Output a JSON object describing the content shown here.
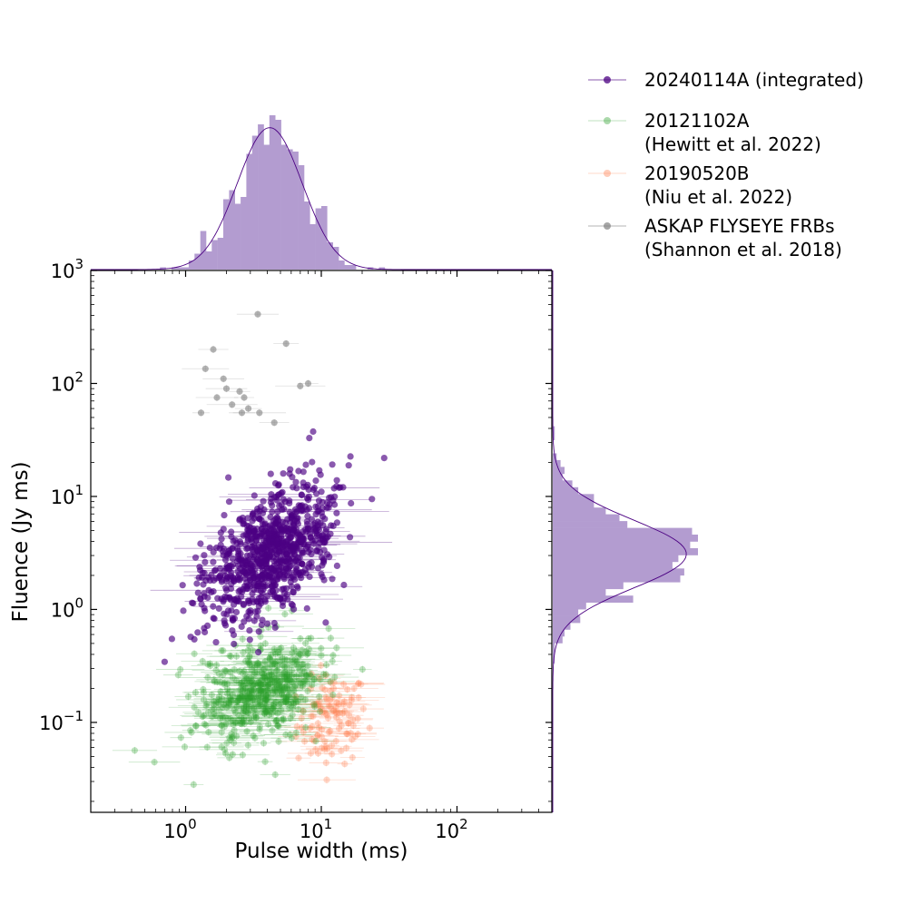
{
  "chart_data": {
    "type": "scatter",
    "xlabel": "Pulse width (ms)",
    "ylabel": "Fluence (Jy ms)",
    "xscale": "log",
    "yscale": "log",
    "xlim": [
      0.2,
      500
    ],
    "ylim": [
      0.016,
      1000
    ],
    "x_ticks": [
      {
        "base": "10",
        "exp": "0",
        "value": 1
      },
      {
        "base": "10",
        "exp": "1",
        "value": 10
      },
      {
        "base": "10",
        "exp": "2",
        "value": 100
      }
    ],
    "y_ticks": [
      {
        "base": "10",
        "exp": "−1",
        "value": 0.1
      },
      {
        "base": "10",
        "exp": "0",
        "value": 1
      },
      {
        "base": "10",
        "exp": "1",
        "value": 10
      },
      {
        "base": "10",
        "exp": "2",
        "value": 100
      },
      {
        "base": "10",
        "exp": "3",
        "value": 1000
      }
    ],
    "legend_placement": "outside top-right",
    "series": [
      {
        "name": "20240114A (integrated)",
        "color": "#4b0082",
        "alpha": 0.65,
        "n_points": 900,
        "x_log_mean": 0.62,
        "x_log_std": 0.24,
        "y_log_mean": 0.49,
        "y_log_std": 0.3,
        "correlation": 0.5
      },
      {
        "name": "20121102A\n (Hewitt et al. 2022)",
        "legend_lines": [
          "20121102A",
          " (Hewitt et al. 2022)"
        ],
        "color": "#2ca02c",
        "alpha": 0.3,
        "n_points": 520,
        "x_log_mean": 0.55,
        "x_log_std": 0.23,
        "y_log_mean": -0.72,
        "y_log_std": 0.24,
        "correlation": 0.35
      },
      {
        "name": "20190520B\n (Niu et al. 2022)",
        "legend_lines": [
          "20190520B",
          " (Niu et al. 2022)"
        ],
        "color": "#ff7f50",
        "alpha": 0.3,
        "n_points": 110,
        "x_log_mean": 1.08,
        "x_log_std": 0.13,
        "y_log_mean": -0.98,
        "y_log_std": 0.2,
        "correlation": 0.1
      },
      {
        "name": "ASKAP FLYSEYE FRBs\n (Shannon et al. 2018)",
        "legend_lines": [
          "ASKAP FLYSEYE FRBs",
          " (Shannon et al. 2018)"
        ],
        "color": "#808080",
        "alpha": 0.6,
        "points": [
          [
            1.4,
            135
          ],
          [
            1.6,
            200
          ],
          [
            1.3,
            55
          ],
          [
            1.7,
            75
          ],
          [
            2.0,
            90
          ],
          [
            2.2,
            65
          ],
          [
            2.5,
            85
          ],
          [
            2.6,
            55
          ],
          [
            2.9,
            60
          ],
          [
            3.4,
            410
          ],
          [
            3.5,
            55
          ],
          [
            4.5,
            45
          ],
          [
            5.5,
            225
          ],
          [
            7.0,
            95
          ],
          [
            8.0,
            100
          ],
          [
            1.9,
            110
          ],
          [
            2.7,
            75
          ]
        ]
      }
    ],
    "histogram_top": {
      "series": "20240114A (integrated)",
      "color": "#b39cd0",
      "fit_color": "#4b0082",
      "bins": "log-spaced pulse width"
    },
    "histogram_right": {
      "series": "20240114A (integrated)",
      "color": "#b39cd0",
      "fit_color": "#4b0082",
      "bins": "log-spaced fluence"
    }
  }
}
